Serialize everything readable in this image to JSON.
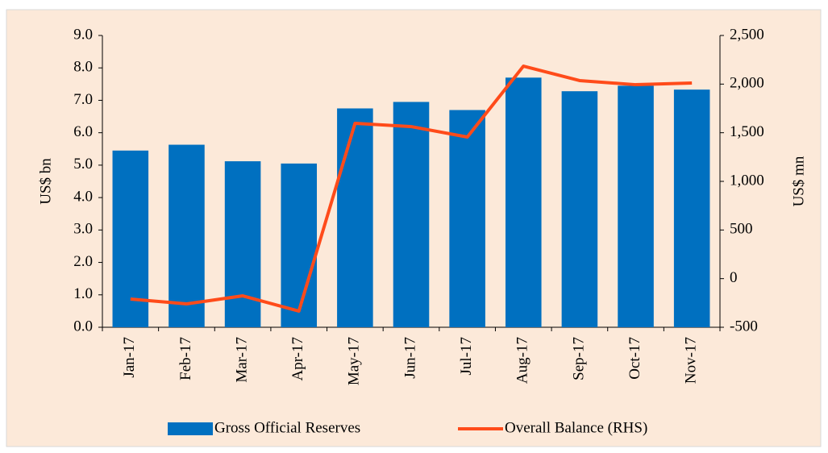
{
  "chart_data": {
    "type": "bar_line",
    "categories": [
      "Jan-17",
      "Feb-17",
      "Mar-17",
      "Apr-17",
      "May-17",
      "Jun-17",
      "Jul-17",
      "Aug-17",
      "Sep-17",
      "Oct-17",
      "Nov-17"
    ],
    "series": [
      {
        "name": "Gross Official Reserves",
        "color": "#0070c0",
        "type": "bar",
        "values": [
          5.45,
          5.63,
          5.12,
          5.05,
          6.75,
          6.95,
          6.7,
          7.7,
          7.28,
          7.45,
          7.33
        ]
      },
      {
        "name": "Overall Balance (RHS)",
        "color": "#ff4b1a",
        "type": "line",
        "axis": "y2",
        "values": [
          -210,
          -260,
          -177,
          -334,
          1597,
          1563,
          1456,
          2185,
          2036,
          1994,
          2011
        ]
      }
    ],
    "ylabel": "US$ bn",
    "y2label": "US$ mn",
    "ylim": [
      0,
      9
    ],
    "yticks": [
      {
        "value": 0,
        "label": "0.0"
      },
      {
        "value": 1,
        "label": "1.0"
      },
      {
        "value": 2,
        "label": "2.0"
      },
      {
        "value": 3,
        "label": "3.0"
      },
      {
        "value": 4,
        "label": "4.0"
      },
      {
        "value": 5,
        "label": "5.0"
      },
      {
        "value": 6,
        "label": "6.0"
      },
      {
        "value": 7,
        "label": "7.0"
      },
      {
        "value": 8,
        "label": "8.0"
      },
      {
        "value": 9,
        "label": "9.0"
      }
    ],
    "y2lim": [
      -500,
      2500
    ],
    "y2ticks": [
      -500,
      0,
      500,
      {
        "value": 1000,
        "label": "1,000"
      },
      {
        "value": 1500,
        "label": "1,500"
      },
      {
        "value": 2000,
        "label": "2,000"
      },
      {
        "value": 2500,
        "label": "2,500"
      }
    ],
    "grid": false,
    "legend": "bottom"
  }
}
